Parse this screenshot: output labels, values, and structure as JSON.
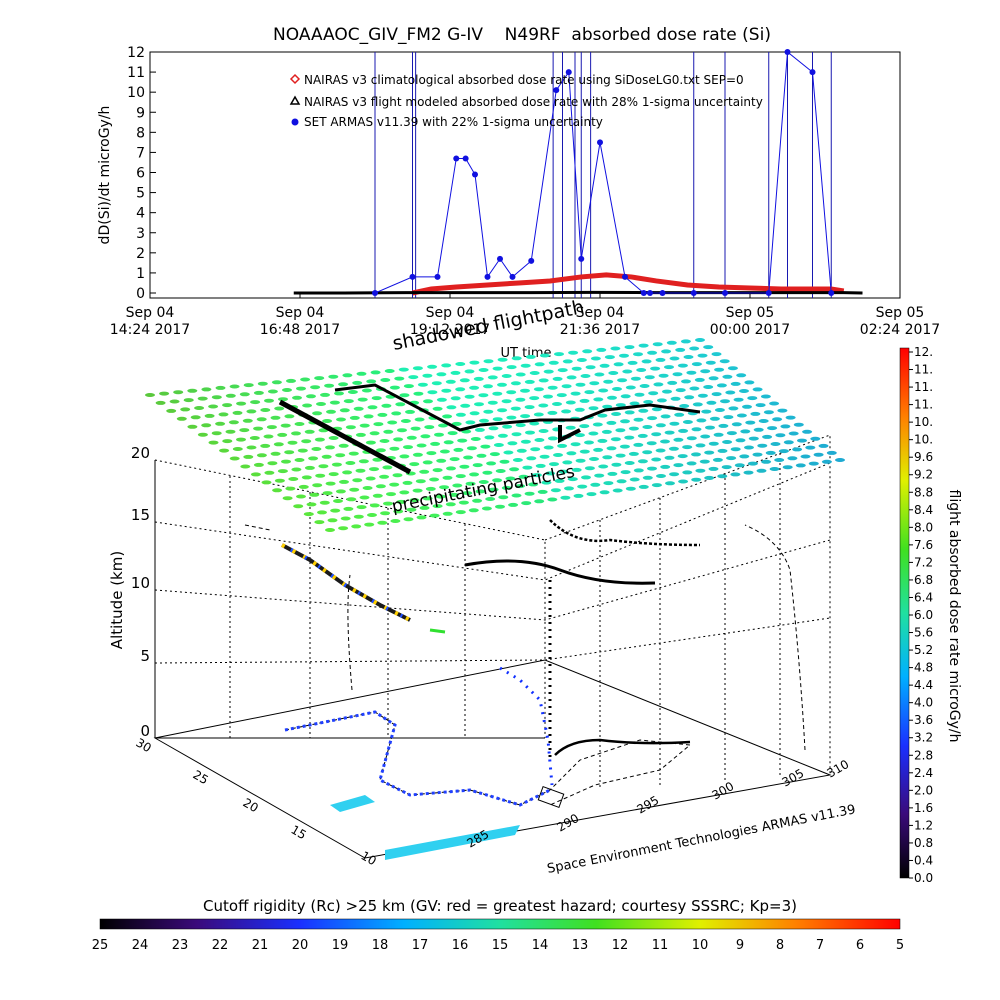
{
  "chart_data": [
    {
      "type": "line",
      "title": "NOAAAOC_GIV_FM2 G-IV    N49RF  absorbed dose rate (Si)",
      "ylabel": "dD(Si)/dt microGy/h",
      "xlabel": "UT time",
      "ylim": [
        0,
        12
      ],
      "yticks": [
        "0",
        "1",
        "2",
        "3",
        "4",
        "5",
        "6",
        "7",
        "8",
        "9",
        "10",
        "11",
        "12"
      ],
      "xlim_hours": [
        14.4,
        26.4
      ],
      "xticks": [
        {
          "line1": "Sep 04",
          "line2": "14:24 2017"
        },
        {
          "line1": "Sep 04",
          "line2": "16:48 2017"
        },
        {
          "line1": "Sep 04",
          "line2": "19:12 2017"
        },
        {
          "line1": "Sep 04",
          "line2": "21:36 2017"
        },
        {
          "line1": "Sep 05",
          "line2": "00:00 2017"
        },
        {
          "line1": "Sep 05",
          "line2": "02:24 2017"
        }
      ],
      "legend_position": "top-center",
      "series": [
        {
          "name": "NAIRAS v3 climatological absorbed dose rate using SiDoseLG0.txt SEP=0",
          "marker": "diamond",
          "color": "#e02020",
          "x": [
            18.6,
            18.9,
            19.3,
            19.8,
            20.3,
            20.8,
            21.3,
            21.7,
            22.1,
            22.5,
            23.0,
            23.5,
            24.0,
            24.5,
            24.9,
            25.3,
            25.5
          ],
          "y": [
            0.0,
            0.2,
            0.3,
            0.4,
            0.5,
            0.6,
            0.8,
            0.9,
            0.8,
            0.6,
            0.4,
            0.3,
            0.25,
            0.2,
            0.2,
            0.2,
            0.1
          ]
        },
        {
          "name": "NAIRAS v3 flight modeled absorbed dose rate with 28% 1-sigma uncertainty",
          "marker": "triangle",
          "color": "#000000",
          "x": [
            16.7,
            17.5,
            18.5,
            19.5,
            20.5,
            21.5,
            22.5,
            23.5,
            24.5,
            25.5,
            25.8
          ],
          "y": [
            0.0,
            0.0,
            0.02,
            0.02,
            0.02,
            0.03,
            0.02,
            0.02,
            0.02,
            0.02,
            0.0
          ]
        },
        {
          "name": "SET ARMAS v11.39 with 22% 1-sigma uncertainty",
          "marker": "dot",
          "color": "#1010e0",
          "x": [
            18.0,
            18.6,
            19.0,
            19.3,
            19.45,
            19.6,
            19.8,
            20.0,
            20.2,
            20.5,
            20.9,
            21.1,
            21.3,
            21.6,
            22.0,
            22.3,
            22.4,
            22.6,
            23.1,
            23.6,
            24.3,
            24.6,
            25.0,
            25.3
          ],
          "y": [
            0.0,
            0.8,
            0.8,
            6.7,
            6.7,
            5.9,
            0.8,
            1.7,
            0.8,
            1.6,
            10.1,
            11.0,
            1.7,
            7.5,
            0.8,
            0.0,
            0.0,
            0.0,
            0.0,
            0.0,
            0.0,
            12.0,
            11.0,
            0.0
          ]
        }
      ]
    },
    {
      "type": "scatter",
      "title": "",
      "zlabel": "Altitude (km)",
      "zticks": [
        "0",
        "5",
        "10",
        "15",
        "20"
      ],
      "y_ticks": [
        "10",
        "15",
        "20",
        "25",
        "30"
      ],
      "x_ticks": [
        "285",
        "290",
        "295",
        "300",
        "305",
        "310"
      ],
      "annotations": {
        "shadowed": "shadowed flightpath",
        "precip": "precipitating particles",
        "credit": "Space Environment Technologies ARMAS v11.39"
      }
    }
  ],
  "dose_colorbar": {
    "label": "flight absorbed dose rate microGy/h",
    "ticks": [
      "0.0",
      "0.4",
      "0.8",
      "1.2",
      "1.6",
      "2.0",
      "2.4",
      "2.8",
      "3.2",
      "3.6",
      "4.0",
      "4.4",
      "4.8",
      "5.2",
      "5.6",
      "6.0",
      "6.4",
      "6.8",
      "7.2",
      "7.6",
      "8.0",
      "8.4",
      "8.8",
      "9.2",
      "9.6",
      "10.",
      "10.",
      "11.",
      "11.",
      "11.",
      "12."
    ]
  },
  "rc_colorbar": {
    "label": "Cutoff rigidity (Rc) >25 km (GV: red = greatest hazard; courtesy SSSRC; Kp=3)",
    "ticks": [
      "25",
      "24",
      "23",
      "22",
      "21",
      "20",
      "19",
      "18",
      "17",
      "16",
      "15",
      "14",
      "13",
      "12",
      "11",
      "10",
      "9",
      "8",
      "7",
      "6",
      "5"
    ]
  },
  "colors": {
    "curtain": "#1818b0",
    "armas": "#1010e0",
    "nairas_clim": "#e02020",
    "flightpath": "#000000"
  }
}
